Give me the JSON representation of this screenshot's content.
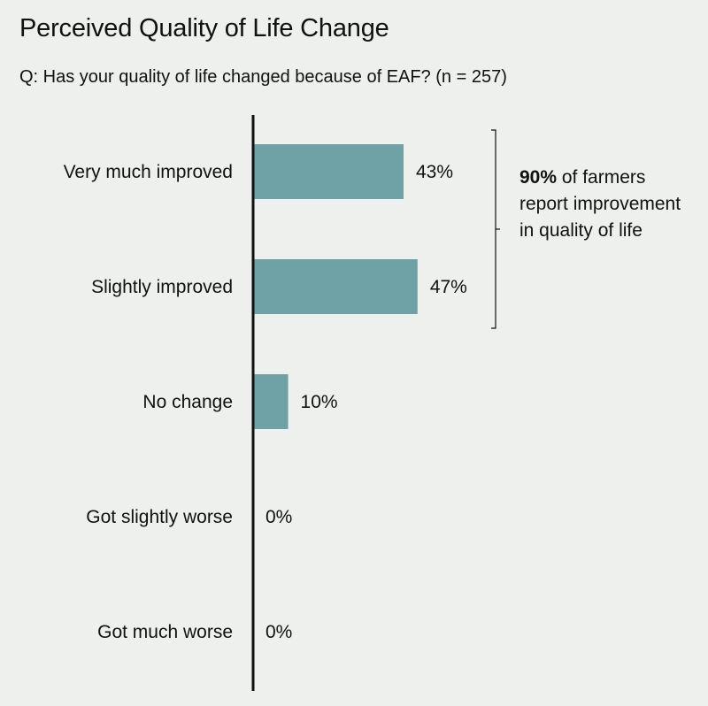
{
  "chart_data": {
    "type": "bar",
    "orientation": "horizontal",
    "title": "Perceived Quality of Life Change",
    "subtitle": "Q: Has your quality of life changed because of EAF? (n = 257)",
    "categories": [
      "Very much improved",
      "Slightly improved",
      "No change",
      "Got slightly worse",
      "Got much worse"
    ],
    "values": [
      43,
      47,
      10,
      0,
      0
    ],
    "value_labels": [
      "43%",
      "47%",
      "10%",
      "0%",
      "0%"
    ],
    "unit": "%",
    "bar_color": "#6fa2a6",
    "xlim": [
      0,
      100
    ],
    "grid": false,
    "annotation": {
      "highlight": "90%",
      "text": " of farmers report improvement in quality of life",
      "applies_to": [
        "Very much improved",
        "Slightly improved"
      ]
    }
  },
  "colors": {
    "background": "#edf0ec",
    "bar": "#6fa2a6",
    "axis": "#111111",
    "text": "#111111"
  }
}
